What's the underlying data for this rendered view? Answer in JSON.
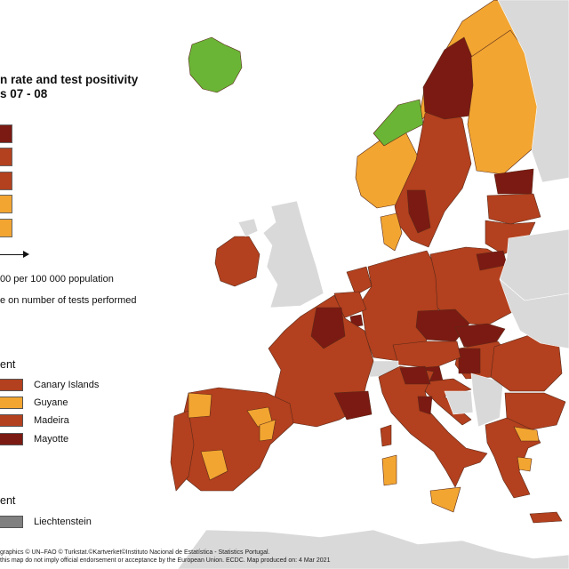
{
  "colors": {
    "sea": "#ffffff",
    "non_eu": "#d9d9d9",
    "dark_red": "#7b1a12",
    "red": "#b3401e",
    "orange": "#f2a531",
    "green": "#6ab536",
    "grey": "#808080",
    "border": "#5a2a1a"
  },
  "map": {
    "title_line1": "n rate and test positivity",
    "title_line2": "s 07 - 08",
    "legend_classes": [
      "dark_red",
      "red",
      "red",
      "orange",
      "orange"
    ],
    "note_population": "00 per 100 000 population",
    "note_tests": "e on number of tests performed"
  },
  "outermost": {
    "heading": "ent",
    "items": [
      {
        "label": "Canary Islands",
        "color": "red"
      },
      {
        "label": "Guyane",
        "color": "orange"
      },
      {
        "label": "Madeira",
        "color": "red"
      },
      {
        "label": "Mayotte",
        "color": "dark_red"
      }
    ]
  },
  "microstate": {
    "heading": "ent",
    "items": [
      {
        "label": "Liechtenstein",
        "color": "grey"
      }
    ]
  },
  "footer": {
    "line1": "graphics © UN–FAO © Turkstat.©Kartverket©Instituto Nacional de Estatística - Statistics Portugal.",
    "line2": "this map do not imply official endorsement or acceptance by the European Union. ECDC. Map produced on: 4 Mar 2021"
  },
  "regions": [
    {
      "name": "iceland",
      "color": "green"
    },
    {
      "name": "ireland",
      "color": "red"
    },
    {
      "name": "great-britain",
      "color": "non_eu"
    },
    {
      "name": "northern-ireland",
      "color": "non_eu"
    },
    {
      "name": "norway",
      "color": "orange"
    },
    {
      "name": "norway-trondelag",
      "color": "green"
    },
    {
      "name": "sweden",
      "color": "red"
    },
    {
      "name": "sweden-north",
      "color": "dark_red"
    },
    {
      "name": "sweden-south",
      "color": "dark_red"
    },
    {
      "name": "finland",
      "color": "orange"
    },
    {
      "name": "estonia",
      "color": "dark_red"
    },
    {
      "name": "latvia",
      "color": "red"
    },
    {
      "name": "lithuania",
      "color": "red"
    },
    {
      "name": "denmark",
      "color": "orange"
    },
    {
      "name": "germany",
      "color": "red"
    },
    {
      "name": "netherlands",
      "color": "red"
    },
    {
      "name": "belgium",
      "color": "red"
    },
    {
      "name": "luxembourg",
      "color": "dark_red"
    },
    {
      "name": "poland",
      "color": "red"
    },
    {
      "name": "poland-east",
      "color": "dark_red"
    },
    {
      "name": "czechia",
      "color": "dark_red"
    },
    {
      "name": "slovakia",
      "color": "dark_red"
    },
    {
      "name": "hungary",
      "color": "red"
    },
    {
      "name": "hungary-west",
      "color": "dark_red"
    },
    {
      "name": "austria",
      "color": "red"
    },
    {
      "name": "switzerland",
      "color": "non_eu"
    },
    {
      "name": "slovenia",
      "color": "dark_red"
    },
    {
      "name": "croatia",
      "color": "red"
    },
    {
      "name": "bosnia",
      "color": "non_eu"
    },
    {
      "name": "serbia",
      "color": "non_eu"
    },
    {
      "name": "romania",
      "color": "red"
    },
    {
      "name": "bulgaria",
      "color": "red"
    },
    {
      "name": "greece",
      "color": "red"
    },
    {
      "name": "greece-north",
      "color": "orange"
    },
    {
      "name": "greece-central",
      "color": "orange"
    },
    {
      "name": "belarus",
      "color": "non_eu"
    },
    {
      "name": "ukraine",
      "color": "non_eu"
    },
    {
      "name": "france",
      "color": "red"
    },
    {
      "name": "france-northeast",
      "color": "dark_red"
    },
    {
      "name": "france-southeast",
      "color": "dark_red"
    },
    {
      "name": "spain",
      "color": "red"
    },
    {
      "name": "spain-north-orange",
      "color": "orange"
    },
    {
      "name": "spain-extremadura",
      "color": "orange"
    },
    {
      "name": "spain-valencia",
      "color": "orange"
    },
    {
      "name": "portugal",
      "color": "red"
    },
    {
      "name": "portugal-north",
      "color": "orange"
    },
    {
      "name": "italy",
      "color": "red"
    },
    {
      "name": "italy-north",
      "color": "dark_red"
    },
    {
      "name": "italy-center",
      "color": "dark_red"
    },
    {
      "name": "sardinia",
      "color": "orange"
    },
    {
      "name": "corsica",
      "color": "red"
    },
    {
      "name": "sicily",
      "color": "orange"
    },
    {
      "name": "north-africa",
      "color": "non_eu"
    },
    {
      "name": "russia",
      "color": "non_eu"
    }
  ]
}
